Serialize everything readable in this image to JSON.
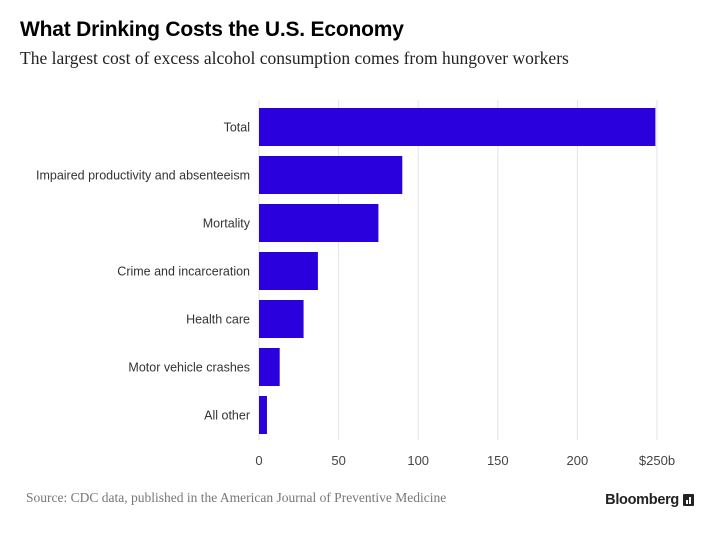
{
  "chart_data": {
    "type": "bar",
    "orientation": "horizontal",
    "title": "What Drinking Costs the U.S. Economy",
    "subtitle": "The largest cost of excess alcohol consumption comes from hungover workers",
    "categories": [
      "Total",
      "Impaired productivity and absenteeism",
      "Mortality",
      "Crime and incarceration",
      "Health care",
      "Motor vehicle crashes",
      "All other"
    ],
    "values": [
      249,
      90,
      75,
      37,
      28,
      13,
      5
    ],
    "xlim": [
      0,
      250
    ],
    "xticks": [
      0,
      50,
      100,
      150,
      200,
      250
    ],
    "xtick_labels": [
      "0",
      "50",
      "100",
      "150",
      "200",
      "$250b"
    ],
    "grid": true,
    "bar_color": "#2a00dd",
    "source": "Source: CDC data, published in the American Journal of Preventive Medicine"
  },
  "brand": {
    "name": "Bloomberg",
    "icon": "bar-chart-icon"
  }
}
